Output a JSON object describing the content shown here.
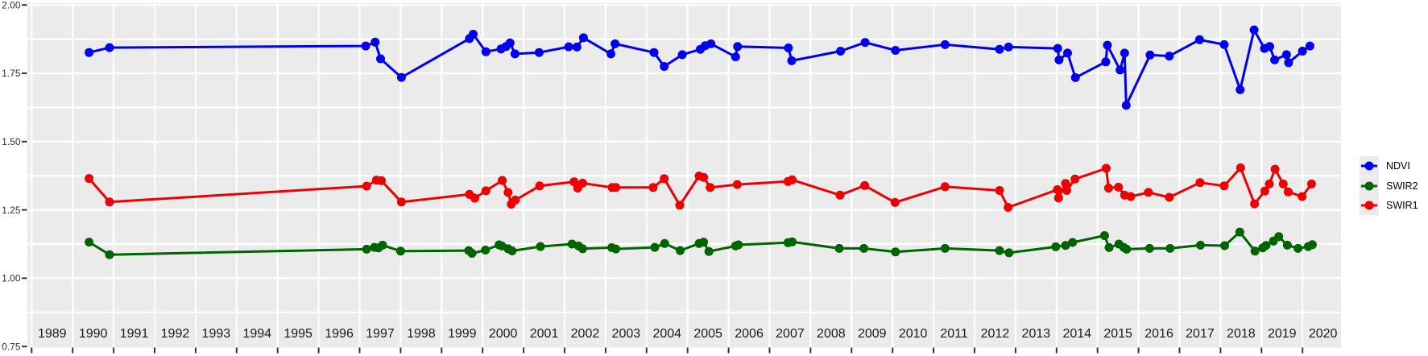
{
  "chart_data": {
    "type": "line",
    "title": "",
    "x_axis": {
      "label": "",
      "tick_labels": [
        "1989",
        "1990",
        "1991",
        "1992",
        "1993",
        "1994",
        "1995",
        "1996",
        "1997",
        "1998",
        "1999",
        "2000",
        "2001",
        "2002",
        "2003",
        "2004",
        "2005",
        "2006",
        "2007",
        "2008",
        "2009",
        "2010",
        "2011",
        "2012",
        "2013",
        "2014",
        "2015",
        "2016",
        "2017",
        "2018",
        "2019",
        "2020"
      ],
      "range": [
        1988.9,
        2021.0
      ],
      "gridlines": "yearly"
    },
    "y_axis": {
      "label": "",
      "tick_labels": [
        "2.00",
        "1.75",
        "1.50",
        "1.25",
        "1.00",
        "0.75"
      ],
      "range": [
        0.75,
        2.0
      ],
      "major_step": 0.25,
      "minor_step": 0.125
    },
    "legend": {
      "position": "right",
      "items": [
        {
          "label": "NDVI",
          "color": "#0000EE"
        },
        {
          "label": "SWIR2",
          "color": "#006400"
        },
        {
          "label": "SWIR1",
          "color": "#EE0000"
        }
      ]
    },
    "style": {
      "panel_bg": "#EBEBEB",
      "grid_color": "#FFFFFF",
      "tick_color": "#333333",
      "x_label_color": "#1A1A1A",
      "y_label_color": "#333333"
    },
    "series": [
      {
        "name": "NDVI",
        "color": "#0000EE",
        "points": [
          [
            1990.4,
            1.826
          ],
          [
            1990.9,
            1.844
          ],
          [
            1997.15,
            1.85
          ],
          [
            1997.38,
            1.864
          ],
          [
            1997.51,
            1.803
          ],
          [
            1998.02,
            1.735
          ],
          [
            1999.68,
            1.877
          ],
          [
            1999.77,
            1.893
          ],
          [
            2000.08,
            1.829
          ],
          [
            2000.45,
            1.839
          ],
          [
            2000.57,
            1.848
          ],
          [
            2000.67,
            1.861
          ],
          [
            2000.79,
            1.821
          ],
          [
            2001.38,
            1.826
          ],
          [
            2002.1,
            1.847
          ],
          [
            2002.3,
            1.846
          ],
          [
            2002.46,
            1.88
          ],
          [
            2003.13,
            1.821
          ],
          [
            2003.23,
            1.858
          ],
          [
            2004.18,
            1.826
          ],
          [
            2004.43,
            1.775
          ],
          [
            2004.87,
            1.818
          ],
          [
            2005.31,
            1.838
          ],
          [
            2005.43,
            1.851
          ],
          [
            2005.57,
            1.858
          ],
          [
            2006.17,
            1.81
          ],
          [
            2006.22,
            1.848
          ],
          [
            2007.46,
            1.843
          ],
          [
            2007.54,
            1.796
          ],
          [
            2008.73,
            1.831
          ],
          [
            2009.33,
            1.863
          ],
          [
            2010.07,
            1.834
          ],
          [
            2011.28,
            1.855
          ],
          [
            2012.61,
            1.838
          ],
          [
            2012.83,
            1.846
          ],
          [
            2014.03,
            1.841
          ],
          [
            2014.06,
            1.799
          ],
          [
            2014.27,
            1.824
          ],
          [
            2014.46,
            1.734
          ],
          [
            2015.2,
            1.792
          ],
          [
            2015.24,
            1.853
          ],
          [
            2015.55,
            1.762
          ],
          [
            2015.66,
            1.824
          ],
          [
            2015.7,
            1.633
          ],
          [
            2016.28,
            1.817
          ],
          [
            2016.75,
            1.813
          ],
          [
            2017.49,
            1.873
          ],
          [
            2018.09,
            1.855
          ],
          [
            2018.48,
            1.69
          ],
          [
            2018.82,
            1.909
          ],
          [
            2019.07,
            1.841
          ],
          [
            2019.2,
            1.848
          ],
          [
            2019.32,
            1.799
          ],
          [
            2019.61,
            1.818
          ],
          [
            2019.66,
            1.789
          ],
          [
            2020.0,
            1.831
          ],
          [
            2020.18,
            1.85
          ]
        ]
      },
      {
        "name": "SWIR2",
        "color": "#006400",
        "points": [
          [
            1990.4,
            1.132
          ],
          [
            1990.9,
            1.086
          ],
          [
            1997.17,
            1.106
          ],
          [
            1997.36,
            1.113
          ],
          [
            1997.46,
            1.111
          ],
          [
            1997.56,
            1.121
          ],
          [
            1998.0,
            1.099
          ],
          [
            1999.66,
            1.101
          ],
          [
            1999.74,
            1.091
          ],
          [
            2000.07,
            1.103
          ],
          [
            2000.4,
            1.122
          ],
          [
            2000.47,
            1.118
          ],
          [
            2000.62,
            1.108
          ],
          [
            2000.72,
            1.1
          ],
          [
            2001.41,
            1.116
          ],
          [
            2002.18,
            1.125
          ],
          [
            2002.34,
            1.118
          ],
          [
            2002.44,
            1.108
          ],
          [
            2003.15,
            1.112
          ],
          [
            2003.25,
            1.107
          ],
          [
            2004.2,
            1.113
          ],
          [
            2004.44,
            1.127
          ],
          [
            2004.82,
            1.101
          ],
          [
            2005.28,
            1.127
          ],
          [
            2005.39,
            1.132
          ],
          [
            2005.52,
            1.098
          ],
          [
            2006.17,
            1.118
          ],
          [
            2006.24,
            1.122
          ],
          [
            2007.45,
            1.13
          ],
          [
            2007.55,
            1.133
          ],
          [
            2008.7,
            1.109
          ],
          [
            2009.3,
            1.109
          ],
          [
            2010.07,
            1.096
          ],
          [
            2011.28,
            1.109
          ],
          [
            2012.61,
            1.101
          ],
          [
            2012.84,
            1.093
          ],
          [
            2013.98,
            1.115
          ],
          [
            2014.22,
            1.12
          ],
          [
            2014.39,
            1.131
          ],
          [
            2015.17,
            1.156
          ],
          [
            2015.28,
            1.112
          ],
          [
            2015.52,
            1.125
          ],
          [
            2015.64,
            1.113
          ],
          [
            2015.71,
            1.106
          ],
          [
            2016.27,
            1.109
          ],
          [
            2016.77,
            1.109
          ],
          [
            2017.51,
            1.121
          ],
          [
            2018.1,
            1.119
          ],
          [
            2018.47,
            1.169
          ],
          [
            2018.84,
            1.099
          ],
          [
            2019.03,
            1.111
          ],
          [
            2019.11,
            1.12
          ],
          [
            2019.29,
            1.136
          ],
          [
            2019.42,
            1.152
          ],
          [
            2019.63,
            1.121
          ],
          [
            2019.89,
            1.109
          ],
          [
            2020.14,
            1.116
          ],
          [
            2020.24,
            1.123
          ]
        ]
      },
      {
        "name": "SWIR1",
        "color": "#EE0000",
        "points": [
          [
            1990.4,
            1.365
          ],
          [
            1990.9,
            1.279
          ],
          [
            1997.17,
            1.337
          ],
          [
            1997.41,
            1.359
          ],
          [
            1997.53,
            1.357
          ],
          [
            1998.02,
            1.279
          ],
          [
            1999.68,
            1.307
          ],
          [
            1999.81,
            1.293
          ],
          [
            2000.08,
            1.32
          ],
          [
            2000.48,
            1.358
          ],
          [
            2000.62,
            1.314
          ],
          [
            2000.7,
            1.271
          ],
          [
            2000.8,
            1.286
          ],
          [
            2001.39,
            1.338
          ],
          [
            2002.23,
            1.353
          ],
          [
            2002.32,
            1.33
          ],
          [
            2002.44,
            1.348
          ],
          [
            2003.16,
            1.332
          ],
          [
            2003.25,
            1.332
          ],
          [
            2004.16,
            1.332
          ],
          [
            2004.43,
            1.364
          ],
          [
            2004.81,
            1.267
          ],
          [
            2005.28,
            1.374
          ],
          [
            2005.39,
            1.369
          ],
          [
            2005.55,
            1.332
          ],
          [
            2006.21,
            1.343
          ],
          [
            2007.45,
            1.354
          ],
          [
            2007.55,
            1.36
          ],
          [
            2008.72,
            1.304
          ],
          [
            2009.32,
            1.339
          ],
          [
            2010.06,
            1.277
          ],
          [
            2011.28,
            1.335
          ],
          [
            2012.61,
            1.321
          ],
          [
            2012.82,
            1.259
          ],
          [
            2014.02,
            1.324
          ],
          [
            2014.05,
            1.294
          ],
          [
            2014.22,
            1.347
          ],
          [
            2014.25,
            1.321
          ],
          [
            2014.45,
            1.363
          ],
          [
            2015.21,
            1.402
          ],
          [
            2015.27,
            1.33
          ],
          [
            2015.51,
            1.333
          ],
          [
            2015.66,
            1.304
          ],
          [
            2015.81,
            1.299
          ],
          [
            2016.24,
            1.314
          ],
          [
            2016.75,
            1.296
          ],
          [
            2017.5,
            1.35
          ],
          [
            2018.09,
            1.338
          ],
          [
            2018.49,
            1.404
          ],
          [
            2018.83,
            1.272
          ],
          [
            2019.08,
            1.319
          ],
          [
            2019.19,
            1.345
          ],
          [
            2019.33,
            1.399
          ],
          [
            2019.53,
            1.345
          ],
          [
            2019.65,
            1.316
          ],
          [
            2019.99,
            1.299
          ],
          [
            2020.22,
            1.345
          ]
        ]
      }
    ]
  }
}
